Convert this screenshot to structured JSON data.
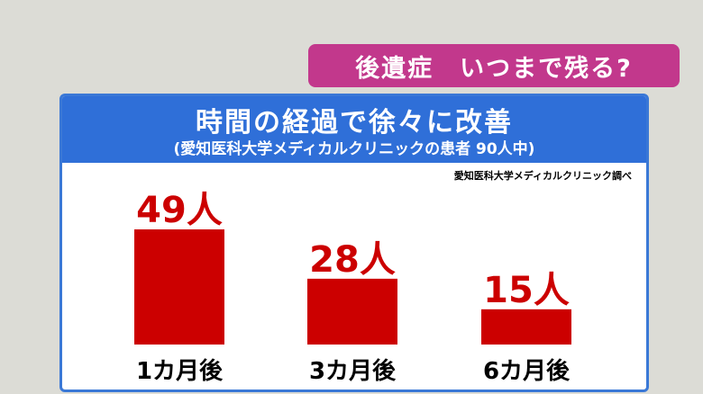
{
  "banner": {
    "text": "後遺症　いつまで残る?"
  },
  "panel": {
    "title": "時間の経過で徐々に改善",
    "subtitle": "(愛知医科大学メディカルクリニックの患者 90人中)",
    "source": "愛知医科大学メディカルクリニック調べ"
  },
  "colors": {
    "bar": "#cc0000",
    "value_label": "#cc0000",
    "header": "#2f6fd8",
    "banner": "#c2388c"
  },
  "chart_data": {
    "type": "bar",
    "title": "時間の経過で徐々に改善",
    "subtitle": "(愛知医科大学メディカルクリニックの患者 90人中)",
    "categories": [
      "1カ月後",
      "3カ月後",
      "6カ月後"
    ],
    "values": [
      49,
      28,
      15
    ],
    "value_labels": [
      "49人",
      "28人",
      "15人"
    ],
    "ylim": [
      0,
      49
    ],
    "grid": false,
    "legend": "none"
  }
}
